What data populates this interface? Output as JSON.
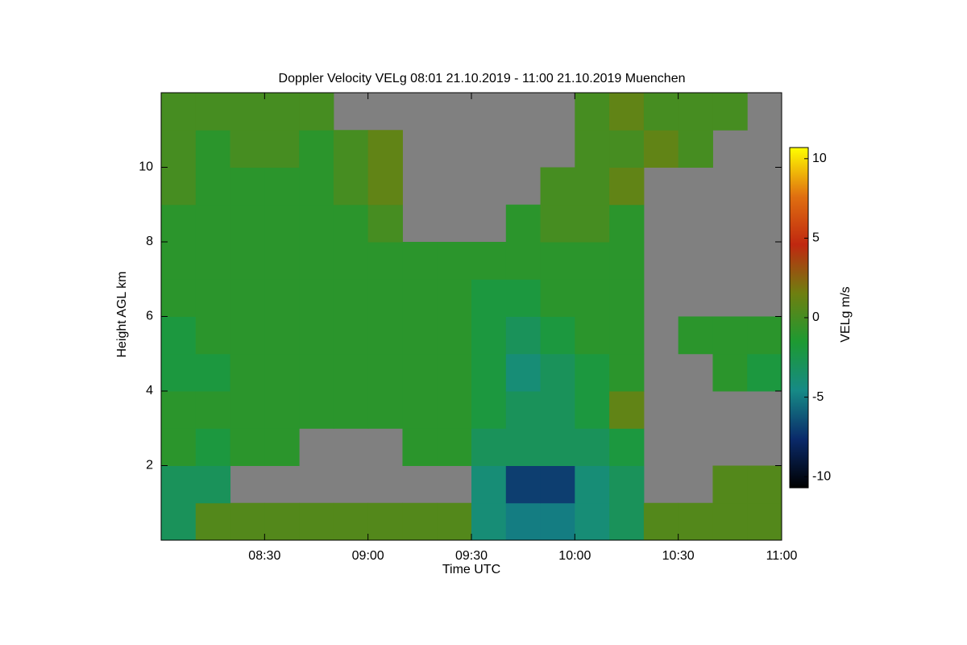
{
  "chart_data": {
    "type": "heatmap",
    "title": "Doppler Velocity VELg   08:01 21.10.2019 - 11:00 21.10.2019 Muenchen",
    "x_label": "Time UTC",
    "y_label": "Height AGL km",
    "colorbar_label": "VELg m/s",
    "x_edges": [
      8.0,
      8.1667,
      8.3333,
      8.5,
      8.6667,
      8.8333,
      9.0,
      9.1667,
      9.3333,
      9.5,
      9.6667,
      9.8333,
      10.0,
      10.1667,
      10.3333,
      10.5,
      10.6667,
      10.8333,
      11.0
    ],
    "y_edges": [
      0,
      1,
      2,
      3,
      4,
      5,
      6,
      7,
      8,
      9,
      10,
      11,
      12
    ],
    "z": [
      [
        -3,
        0.5,
        0.5,
        0.5,
        0.5,
        0.5,
        0.5,
        0.5,
        0.5,
        -4,
        -5,
        -5,
        -4,
        -3,
        0.5,
        0.5,
        0.5,
        0.5
      ],
      [
        -3,
        -3,
        null,
        null,
        null,
        null,
        null,
        null,
        null,
        -4,
        -7,
        -7,
        -4,
        -3,
        null,
        null,
        0.5,
        0.5
      ],
      [
        -1,
        -2,
        -1,
        -1,
        null,
        null,
        null,
        -1,
        -1,
        -3,
        -3,
        -3,
        -3,
        -2,
        null,
        null,
        null,
        null
      ],
      [
        -1,
        -1,
        -1,
        -1,
        -1,
        -1,
        -1,
        -1,
        -1,
        -2,
        -3,
        -3,
        -2,
        1,
        null,
        null,
        null,
        null
      ],
      [
        -2,
        -2,
        -1,
        -1,
        -1,
        -1,
        -1,
        -1,
        -1,
        -2,
        -4,
        -3,
        -2,
        -1,
        null,
        null,
        -1,
        -2
      ],
      [
        -2,
        -1,
        -1,
        -1,
        -1,
        -1,
        -1,
        -1,
        -1,
        -2,
        -3,
        -2,
        -1,
        -1,
        null,
        -1,
        -1,
        -1
      ],
      [
        -1,
        -1,
        -1,
        -1,
        -1,
        -1,
        -1,
        -1,
        -1,
        -2,
        -2,
        -1,
        -1,
        -1,
        null,
        null,
        null,
        null
      ],
      [
        -1,
        -1,
        -1,
        -1,
        -1,
        -1,
        -1,
        -1,
        -1,
        -1,
        -1,
        -1,
        -1,
        -1,
        null,
        null,
        null,
        null
      ],
      [
        -1,
        -1,
        -1,
        -1,
        -1,
        -1,
        0,
        null,
        null,
        null,
        -1,
        0,
        0,
        -1,
        null,
        null,
        null,
        null
      ],
      [
        0,
        -1,
        -1,
        -1,
        -1,
        0,
        1,
        null,
        null,
        null,
        null,
        0,
        0,
        1,
        null,
        null,
        null,
        null
      ],
      [
        0,
        -1,
        0,
        0,
        -1,
        0,
        1,
        null,
        null,
        null,
        null,
        null,
        0,
        0,
        1,
        0,
        null,
        null
      ],
      [
        0,
        0,
        0,
        0,
        0,
        null,
        null,
        null,
        null,
        null,
        null,
        null,
        0,
        1,
        0,
        0,
        0,
        null
      ]
    ],
    "xlim": [
      8.0,
      11.0
    ],
    "xticks": [
      {
        "value": 8.5,
        "label": "08:30"
      },
      {
        "value": 9.0,
        "label": "09:00"
      },
      {
        "value": 9.5,
        "label": "09:30"
      },
      {
        "value": 10.0,
        "label": "10:00"
      },
      {
        "value": 10.5,
        "label": "10:30"
      },
      {
        "value": 11.0,
        "label": "11:00"
      }
    ],
    "ylim": [
      0,
      12
    ],
    "yticks": [
      2,
      4,
      6,
      8,
      10
    ],
    "clim": [
      -10.7,
      10.7
    ],
    "cticks": [
      -10,
      -5,
      0,
      5,
      10
    ],
    "colormap": [
      "#000000",
      "#0a2a6a",
      "#168a86",
      "#1d9a32",
      "#6f7f10",
      "#c02810",
      "#e07010",
      "#ffff00"
    ],
    "null_color": "#808080"
  }
}
